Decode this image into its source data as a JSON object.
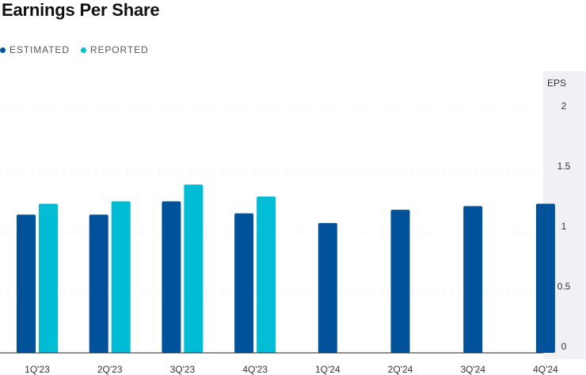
{
  "colors": {
    "estimated": "#00529b",
    "reported": "#00bcd4",
    "axis_panel": "#f1f1f5",
    "grid": "#cfd3d8",
    "axis_line": "#222222",
    "text": "#333333"
  },
  "chart_data": {
    "type": "bar",
    "title": "Earnings Per Share",
    "ylabel": "EPS",
    "xlabel": "",
    "ylim": [
      0,
      2
    ],
    "yticks": [
      {
        "value": 0,
        "label": "0"
      },
      {
        "value": 0.5,
        "label": "0.5"
      },
      {
        "value": 1,
        "label": "1"
      },
      {
        "value": 1.5,
        "label": "1.5"
      },
      {
        "value": 2,
        "label": "2"
      }
    ],
    "grid": true,
    "legend_position": "top-left",
    "categories": [
      "1Q'23",
      "2Q'23",
      "3Q'23",
      "4Q'23",
      "1Q'24",
      "2Q'24",
      "3Q'24",
      "4Q'24"
    ],
    "series": [
      {
        "name": "ESTIMATED",
        "color": "#00529b",
        "values": [
          1.15,
          1.15,
          1.26,
          1.16,
          1.08,
          1.19,
          1.22,
          1.24
        ]
      },
      {
        "name": "REPORTED",
        "color": "#00bcd4",
        "values": [
          1.24,
          1.26,
          1.4,
          1.3,
          null,
          null,
          null,
          null
        ]
      }
    ]
  }
}
